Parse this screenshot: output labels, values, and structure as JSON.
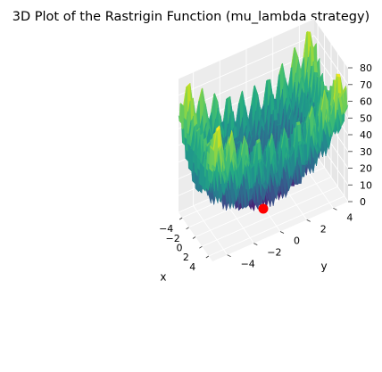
{
  "chart_data": {
    "type": "surface3d",
    "title": "3D Plot of the Rastrigin Function (mu_lambda strategy)",
    "function": "rastrigin",
    "A": 10,
    "x_range": [
      -5.12,
      5.12
    ],
    "y_range": [
      -5.12,
      5.12
    ],
    "xlabel": "x",
    "ylabel": "y",
    "zlabel": "",
    "x_ticks": [
      -4,
      -2,
      0,
      2,
      4
    ],
    "y_ticks": [
      -4,
      -2,
      0,
      2,
      4
    ],
    "z_ticks": [
      0,
      10,
      20,
      30,
      40,
      50,
      60,
      70,
      80
    ],
    "zlim": [
      0,
      80
    ],
    "colormap": "viridis",
    "grid": true,
    "best_point": {
      "x": 0,
      "y": 0,
      "z": 0,
      "color": "#ff0000"
    }
  }
}
